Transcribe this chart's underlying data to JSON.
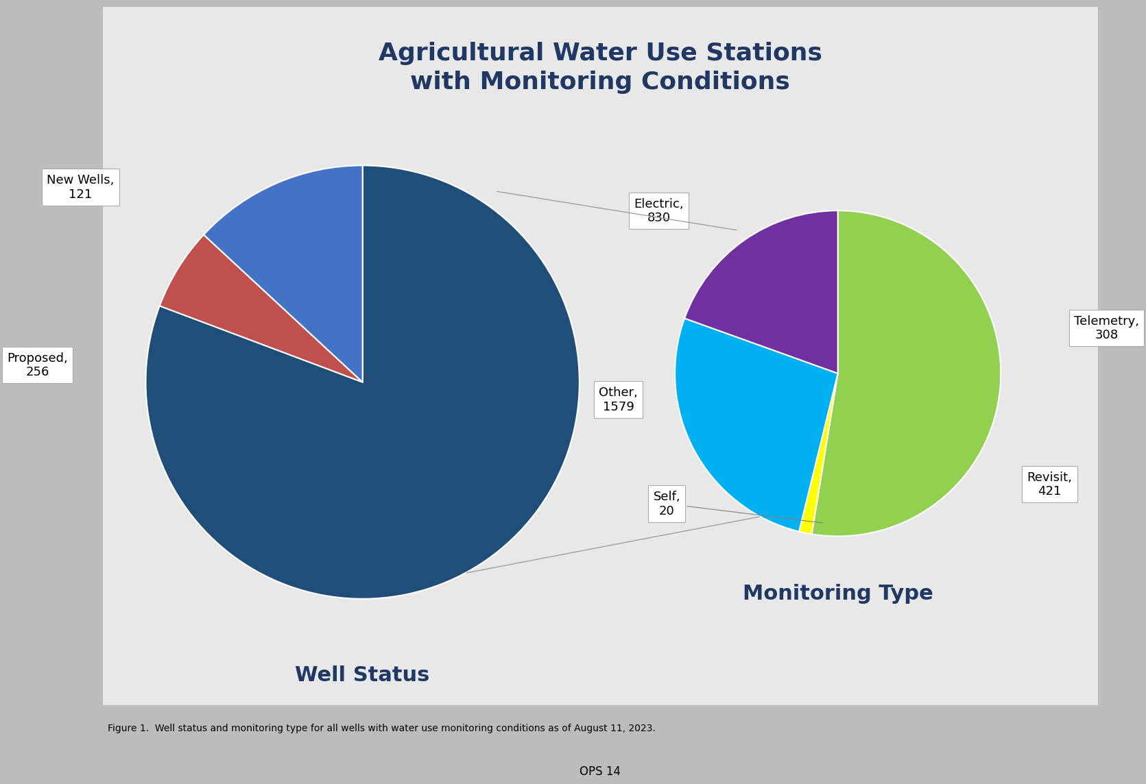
{
  "title": "Agricultural Water Use Stations\nwith Monitoring Conditions",
  "title_color": "#1F3864",
  "title_fontsize": 26,
  "title_fontweight": "bold",
  "well_status_label": "Well Status",
  "monitoring_type_label": "Monitoring Type",
  "subtitle_color": "#1F3864",
  "subtitle_fontsize": 22,
  "subtitle_fontweight": "bold",
  "pie1_values": [
    1579,
    121,
    256
  ],
  "pie1_labels": [
    "Other,\n1579",
    "New Wells,\n121",
    "Proposed,\n256"
  ],
  "pie1_colors": [
    "#1F4E79",
    "#C0504D",
    "#4472C4"
  ],
  "pie1_startangle": 90,
  "pie2_values": [
    830,
    20,
    421,
    308
  ],
  "pie2_labels": [
    "Electric,\n830",
    "Self,\n20",
    "Revisit,\n421",
    "Telemetry,\n308"
  ],
  "pie2_colors": [
    "#92D050",
    "#FFFF00",
    "#00B0F0",
    "#7030A0"
  ],
  "pie2_startangle": 90,
  "figure_caption": "Figure 1.  Well status and monitoring type for all wells with water use monitoring conditions as of August 11, 2023.",
  "page_label": "OPS 14",
  "outer_bg_color": "#BCBCBC",
  "panel_bg_color": "#E8E8E8",
  "annotation_fontsize": 13,
  "annotation_bbox_color": "white",
  "annotation_bbox_edgecolor": "#AAAAAA"
}
